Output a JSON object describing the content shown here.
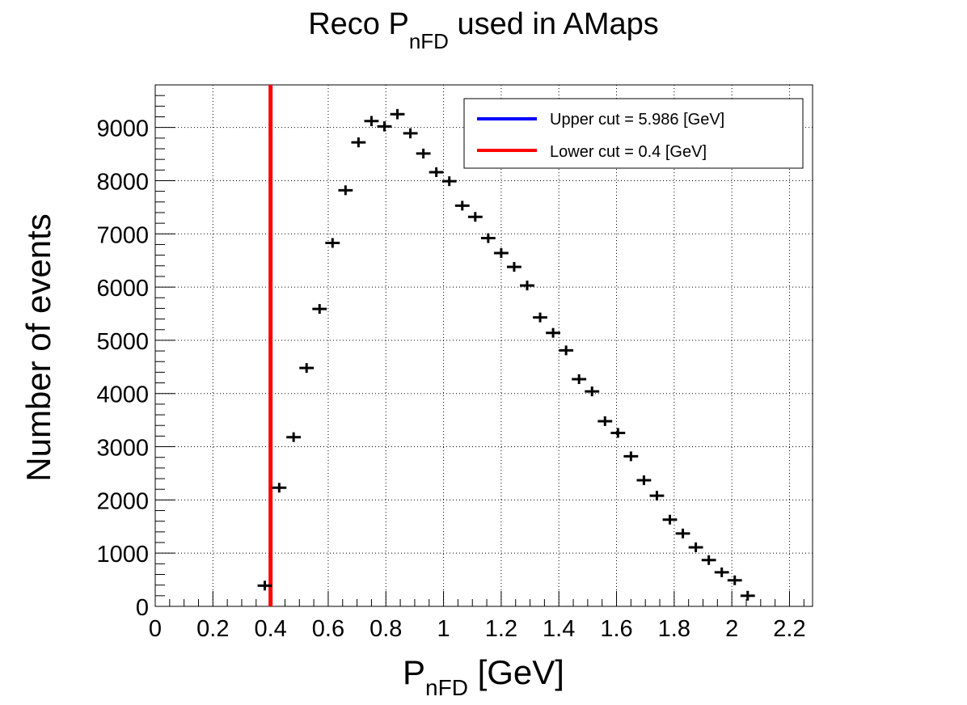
{
  "chart_data": {
    "type": "scatter",
    "title": {
      "main": "Reco P",
      "sub": "nFD",
      "rest": " used in AMaps"
    },
    "xlabel": {
      "main": "P",
      "sub": "nFD",
      "rest": " [GeV]"
    },
    "ylabel": "Number of events",
    "xlim": [
      0,
      2.28
    ],
    "ylim": [
      0,
      9800
    ],
    "grid": true,
    "x_ticks": [
      0,
      0.2,
      0.4,
      0.6,
      0.8,
      1,
      1.2,
      1.4,
      1.6,
      1.8,
      2,
      2.2
    ],
    "x_tick_labels": [
      "0",
      "0.2",
      "0.4",
      "0.6",
      "0.8",
      "1",
      "1.2",
      "1.4",
      "1.6",
      "1.8",
      "2",
      "2.2"
    ],
    "y_ticks": [
      0,
      1000,
      2000,
      3000,
      4000,
      5000,
      6000,
      7000,
      8000,
      9000
    ],
    "y_tick_labels": [
      "0",
      "1000",
      "2000",
      "3000",
      "4000",
      "5000",
      "6000",
      "7000",
      "8000",
      "9000"
    ],
    "bin_half_width": 0.025,
    "points": [
      {
        "x": 0.38,
        "y": 390
      },
      {
        "x": 0.43,
        "y": 2230
      },
      {
        "x": 0.48,
        "y": 3180
      },
      {
        "x": 0.525,
        "y": 4480
      },
      {
        "x": 0.57,
        "y": 5590
      },
      {
        "x": 0.615,
        "y": 6830
      },
      {
        "x": 0.66,
        "y": 7820
      },
      {
        "x": 0.705,
        "y": 8720
      },
      {
        "x": 0.75,
        "y": 9120
      },
      {
        "x": 0.795,
        "y": 9020
      },
      {
        "x": 0.84,
        "y": 9250
      },
      {
        "x": 0.885,
        "y": 8890
      },
      {
        "x": 0.93,
        "y": 8510
      },
      {
        "x": 0.975,
        "y": 8160
      },
      {
        "x": 1.02,
        "y": 7990
      },
      {
        "x": 1.065,
        "y": 7530
      },
      {
        "x": 1.11,
        "y": 7320
      },
      {
        "x": 1.155,
        "y": 6920
      },
      {
        "x": 1.2,
        "y": 6640
      },
      {
        "x": 1.245,
        "y": 6380
      },
      {
        "x": 1.29,
        "y": 6030
      },
      {
        "x": 1.335,
        "y": 5430
      },
      {
        "x": 1.38,
        "y": 5140
      },
      {
        "x": 1.425,
        "y": 4810
      },
      {
        "x": 1.47,
        "y": 4270
      },
      {
        "x": 1.515,
        "y": 4040
      },
      {
        "x": 1.56,
        "y": 3480
      },
      {
        "x": 1.605,
        "y": 3260
      },
      {
        "x": 1.65,
        "y": 2820
      },
      {
        "x": 1.695,
        "y": 2370
      },
      {
        "x": 1.74,
        "y": 2080
      },
      {
        "x": 1.785,
        "y": 1630
      },
      {
        "x": 1.83,
        "y": 1370
      },
      {
        "x": 1.875,
        "y": 1110
      },
      {
        "x": 1.92,
        "y": 870
      },
      {
        "x": 1.965,
        "y": 640
      },
      {
        "x": 2.01,
        "y": 490
      },
      {
        "x": 2.055,
        "y": 200
      }
    ],
    "cuts": [
      {
        "label": "Upper cut = 5.986 [GeV]",
        "value": 5.986,
        "color": "#0000ff"
      },
      {
        "label": "Lower cut = 0.4 [GeV]",
        "value": 0.4,
        "color": "#ff0000"
      }
    ],
    "legend_position": "top-right",
    "marker_color": "#000000"
  }
}
